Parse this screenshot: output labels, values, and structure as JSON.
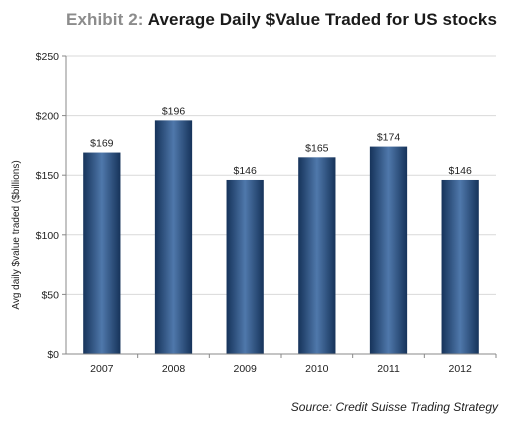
{
  "title": {
    "prefix": "Exhibit 2:",
    "main": "Average Daily $Value Traded for US stocks"
  },
  "source": "Source: Credit Suisse Trading Strategy",
  "colors": {
    "bar_edge": "#16335a",
    "bar_center": "#4f78ab",
    "grid": "#d9d9d9",
    "axis": "#888888"
  },
  "chart_data": {
    "type": "bar",
    "categories": [
      "2007",
      "2008",
      "2009",
      "2010",
      "2011",
      "2012"
    ],
    "values": [
      169,
      196,
      146,
      165,
      174,
      146
    ],
    "data_labels": [
      "$169",
      "$196",
      "$146",
      "$165",
      "$174",
      "$146"
    ],
    "ylabel": "Avg daily $value traded ($billions)",
    "xlabel": "",
    "ylim": [
      0,
      250
    ],
    "yticks": [
      0,
      50,
      100,
      150,
      200,
      250
    ],
    "ytick_labels": [
      "$0",
      "$50",
      "$100",
      "$150",
      "$200",
      "$250"
    ],
    "grid": true,
    "legend": "none"
  }
}
